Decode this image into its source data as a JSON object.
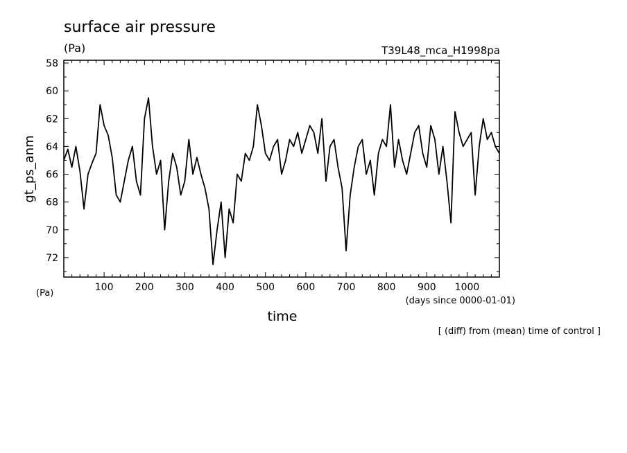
{
  "chart_data": {
    "type": "line",
    "title": "surface air pressure",
    "title_units": "(Pa)",
    "experiment": "T39L48_mca_H1998pa",
    "ylabel": "gt_ps_anm",
    "y_units": "(Pa)",
    "xlabel": "time",
    "x_units": "(days since 0000-01-01)",
    "note": "[ (diff) from (mean) time of control ]",
    "xlim": [
      0,
      1080
    ],
    "ylim": [
      73.4,
      57.8
    ],
    "y_inverted": true,
    "x_ticks": [
      "100",
      "200",
      "300",
      "400",
      "500",
      "600",
      "700",
      "800",
      "900",
      "1000"
    ],
    "y_ticks": [
      "58",
      "60",
      "62",
      "64",
      "66",
      "68",
      "70",
      "72"
    ],
    "series": [
      {
        "name": "gt_ps_anm",
        "x": [
          0,
          10,
          20,
          30,
          40,
          50,
          60,
          70,
          80,
          90,
          100,
          110,
          120,
          130,
          140,
          150,
          160,
          170,
          180,
          190,
          200,
          210,
          220,
          230,
          240,
          250,
          260,
          270,
          280,
          290,
          300,
          310,
          320,
          330,
          340,
          350,
          360,
          370,
          380,
          390,
          400,
          410,
          420,
          430,
          440,
          450,
          460,
          470,
          480,
          490,
          500,
          510,
          520,
          530,
          540,
          550,
          560,
          570,
          580,
          590,
          600,
          610,
          620,
          630,
          640,
          650,
          660,
          670,
          680,
          690,
          700,
          710,
          720,
          730,
          740,
          750,
          760,
          770,
          780,
          790,
          800,
          810,
          820,
          830,
          840,
          850,
          860,
          870,
          880,
          890,
          900,
          910,
          920,
          930,
          940,
          950,
          960,
          970,
          980,
          990,
          1000,
          1010,
          1020,
          1030,
          1040,
          1050,
          1060,
          1070,
          1080
        ],
        "values": [
          65.0,
          64.2,
          65.5,
          64.0,
          65.8,
          68.5,
          66.0,
          65.2,
          64.5,
          61.0,
          62.5,
          63.2,
          64.8,
          67.5,
          68.0,
          66.5,
          65.0,
          64.0,
          66.5,
          67.5,
          62.0,
          60.5,
          64.0,
          66.0,
          65.0,
          70.0,
          66.5,
          64.5,
          65.5,
          67.5,
          66.5,
          63.5,
          66.0,
          64.8,
          66.0,
          67.0,
          68.5,
          72.5,
          70.0,
          68.0,
          72.0,
          68.5,
          69.5,
          66.0,
          66.5,
          64.5,
          65.0,
          64.0,
          61.0,
          62.5,
          64.5,
          65.0,
          64.0,
          63.5,
          66.0,
          65.0,
          63.5,
          64.0,
          63.0,
          64.5,
          63.5,
          62.5,
          63.0,
          64.5,
          62.0,
          66.5,
          64.0,
          63.5,
          65.5,
          67.0,
          71.5,
          67.5,
          65.5,
          64.0,
          63.5,
          66.0,
          65.0,
          67.5,
          64.5,
          63.5,
          64.0,
          61.0,
          65.5,
          63.5,
          65.0,
          66.0,
          64.5,
          63.0,
          62.5,
          64.5,
          65.5,
          62.5,
          63.5,
          66.0,
          64.0,
          66.5,
          69.5,
          61.5,
          63.0,
          64.0,
          63.5,
          63.0,
          67.5,
          64.0,
          62.0,
          63.5,
          63.0,
          64.0,
          64.5
        ]
      }
    ]
  }
}
